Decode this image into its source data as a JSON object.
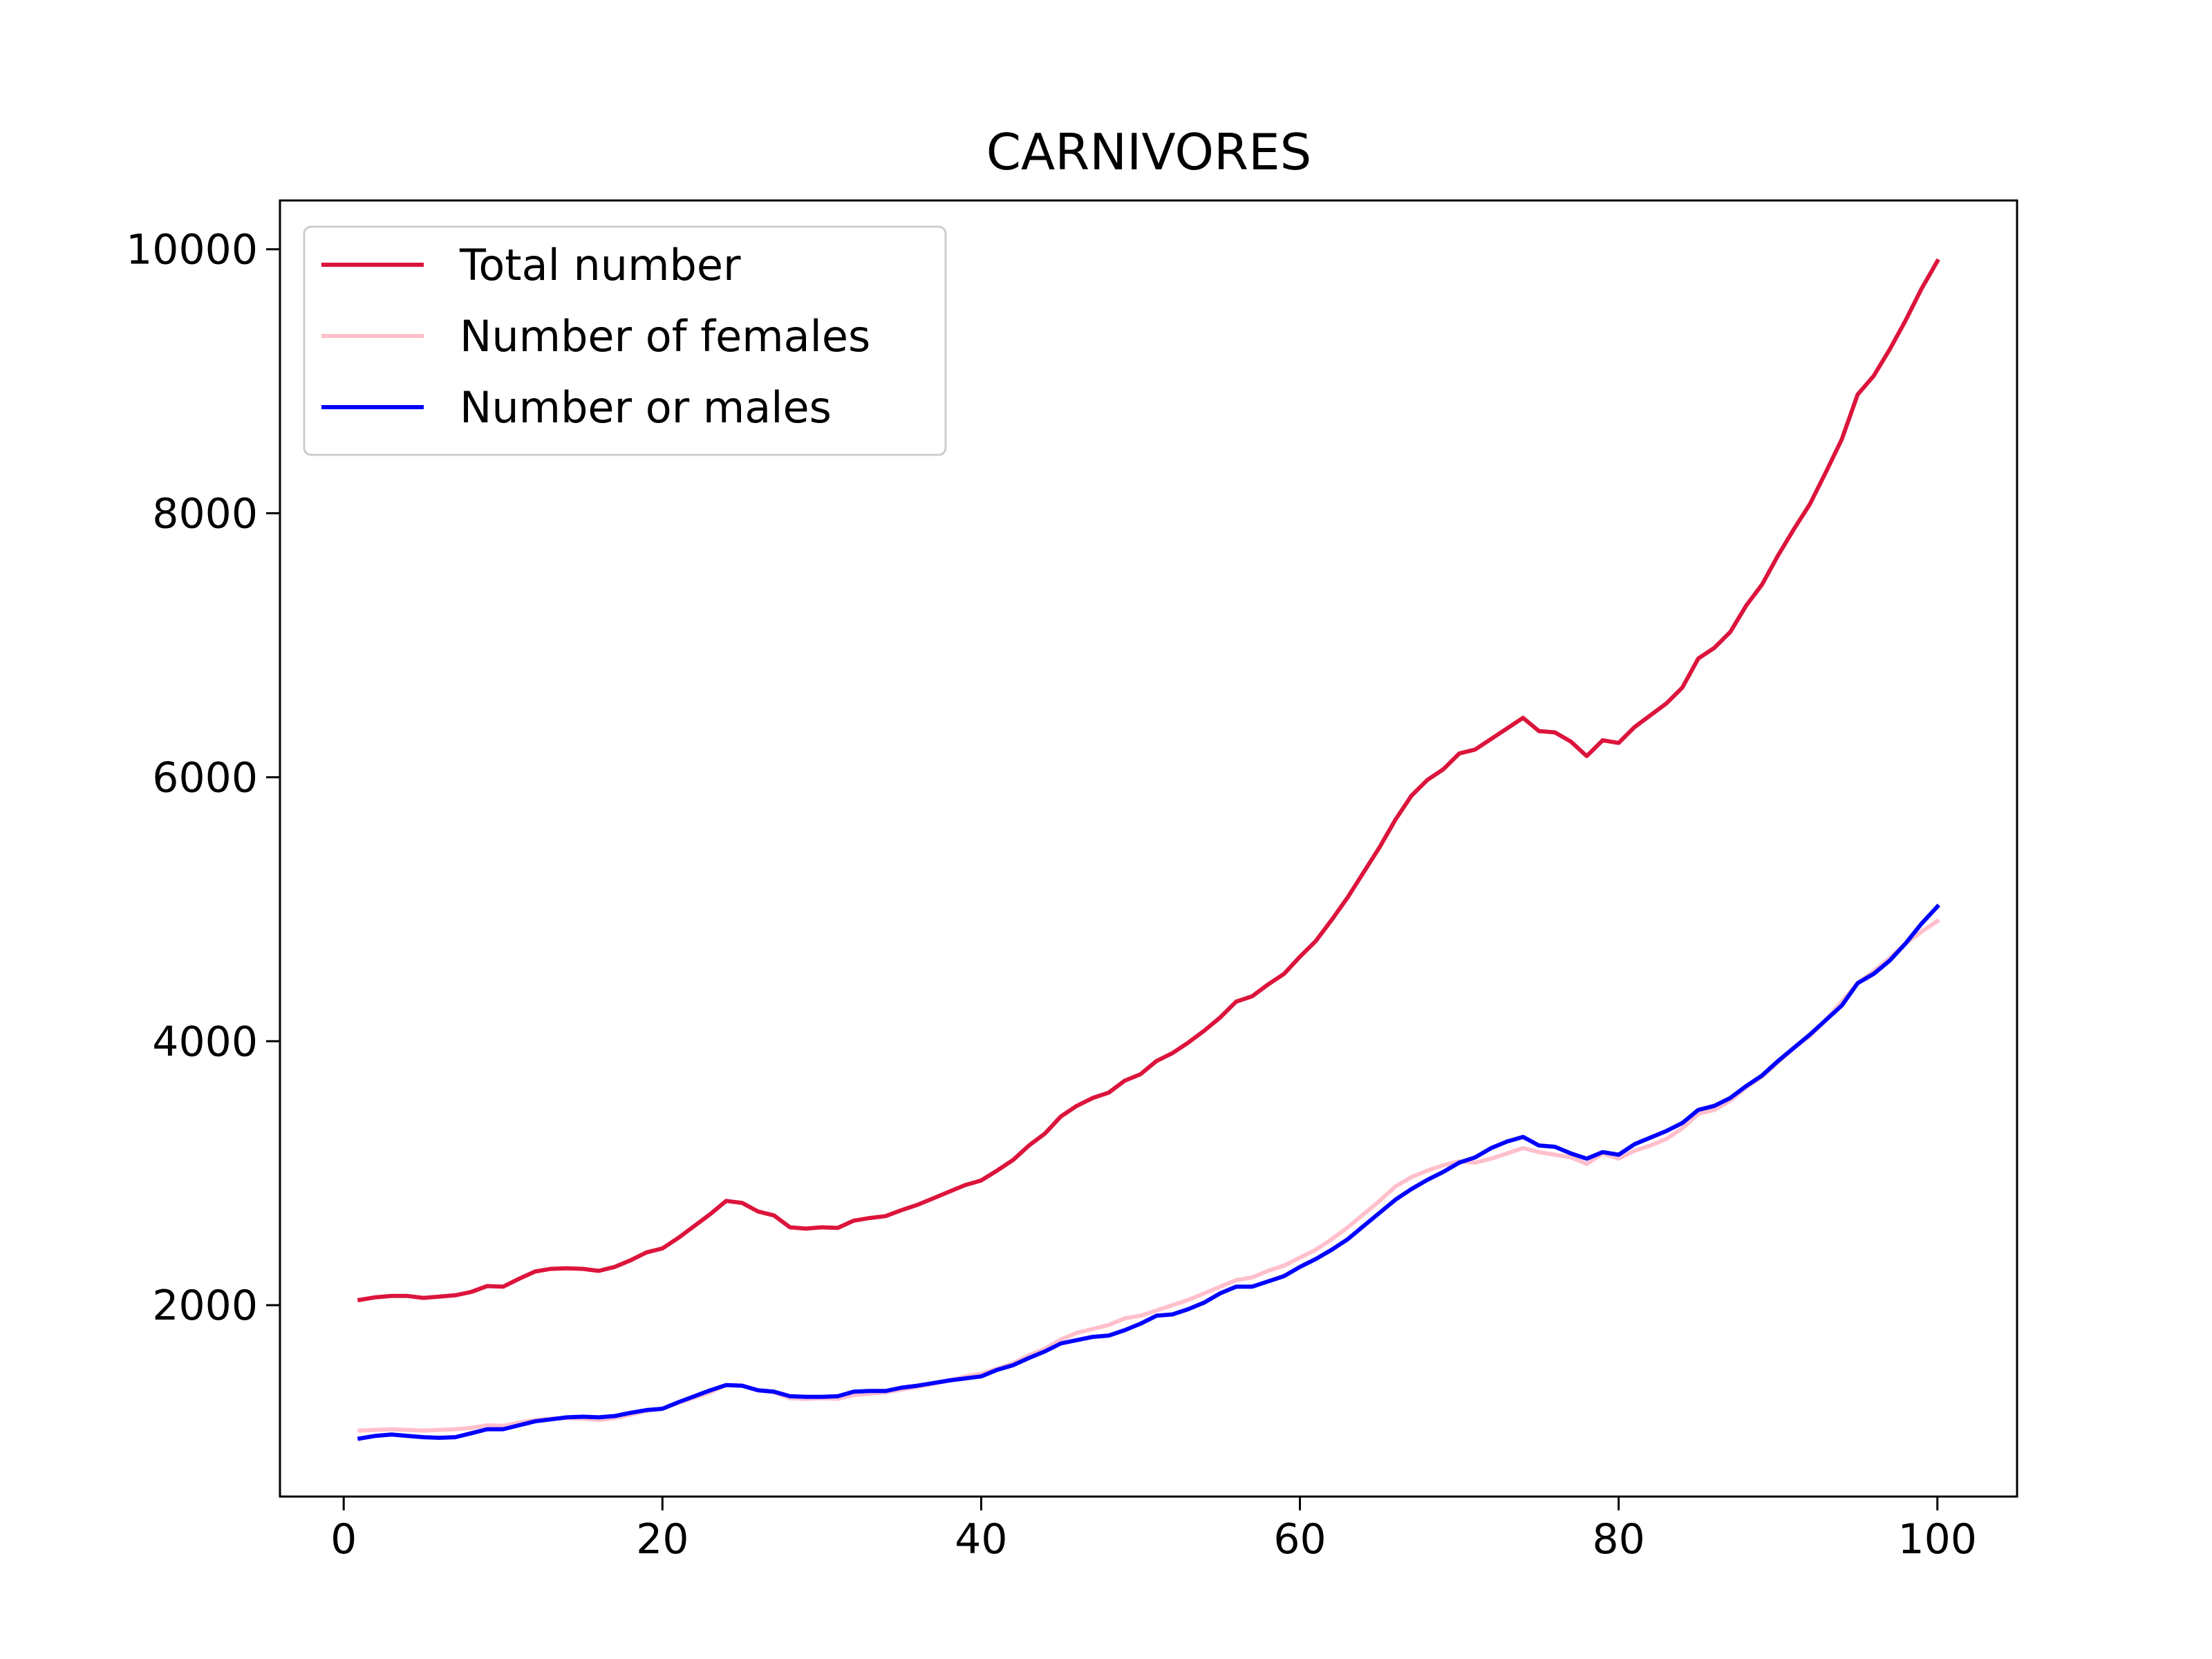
{
  "chart_data": {
    "type": "line",
    "title": "CARNIVORES",
    "xlabel": "",
    "ylabel": "",
    "xlim": [
      -4,
      105
    ],
    "ylim": [
      550,
      10370
    ],
    "xticks": [
      0,
      20,
      40,
      60,
      80,
      100
    ],
    "yticks": [
      2000,
      4000,
      6000,
      8000,
      10000
    ],
    "grid": false,
    "legend_position": "upper-left",
    "x": [
      1,
      2,
      3,
      4,
      5,
      6,
      7,
      8,
      9,
      10,
      11,
      12,
      13,
      14,
      15,
      16,
      17,
      18,
      19,
      20,
      21,
      22,
      23,
      24,
      25,
      26,
      27,
      28,
      29,
      30,
      31,
      32,
      33,
      34,
      35,
      36,
      37,
      38,
      39,
      40,
      41,
      42,
      43,
      44,
      45,
      46,
      47,
      48,
      49,
      50,
      51,
      52,
      53,
      54,
      55,
      56,
      57,
      58,
      59,
      60,
      61,
      62,
      63,
      64,
      65,
      66,
      67,
      68,
      69,
      70,
      71,
      72,
      73,
      74,
      75,
      76,
      77,
      78,
      79,
      80,
      81,
      82,
      83,
      84,
      85,
      86,
      87,
      88,
      89,
      90,
      91,
      92,
      93,
      94,
      95,
      96,
      97,
      98,
      99,
      100
    ],
    "series": [
      {
        "name": "Total number",
        "color": "#dc143c",
        "values": [
          2040,
          2060,
          2070,
          2070,
          2055,
          2065,
          2075,
          2100,
          2145,
          2140,
          2200,
          2255,
          2275,
          2280,
          2275,
          2260,
          2290,
          2340,
          2400,
          2430,
          2510,
          2600,
          2690,
          2790,
          2775,
          2710,
          2680,
          2590,
          2580,
          2590,
          2585,
          2640,
          2660,
          2675,
          2720,
          2760,
          2810,
          2860,
          2910,
          2945,
          3020,
          3100,
          3210,
          3300,
          3430,
          3510,
          3570,
          3610,
          3700,
          3750,
          3850,
          3910,
          3990,
          4080,
          4180,
          4300,
          4340,
          4430,
          4510,
          4640,
          4760,
          4920,
          5090,
          5280,
          5470,
          5680,
          5860,
          5980,
          6060,
          6180,
          6210,
          6290,
          6370,
          6450,
          6350,
          6340,
          6270,
          6160,
          6280,
          6260,
          6380,
          6470,
          6560,
          6680,
          6900,
          6980,
          7100,
          7300,
          7460,
          7680,
          7880,
          8070,
          8310,
          8560,
          8900,
          9040,
          9240,
          9460,
          9700,
          9910
        ]
      },
      {
        "name": "Number of females",
        "color": "#ffc0cb",
        "values": [
          1050,
          1055,
          1060,
          1055,
          1050,
          1055,
          1060,
          1070,
          1090,
          1085,
          1110,
          1130,
          1140,
          1145,
          1140,
          1130,
          1145,
          1170,
          1200,
          1215,
          1260,
          1300,
          1340,
          1395,
          1390,
          1355,
          1340,
          1295,
          1290,
          1295,
          1290,
          1320,
          1330,
          1340,
          1360,
          1380,
          1405,
          1430,
          1460,
          1480,
          1520,
          1560,
          1620,
          1670,
          1740,
          1790,
          1820,
          1850,
          1900,
          1920,
          1960,
          2000,
          2040,
          2090,
          2140,
          2190,
          2210,
          2260,
          2300,
          2360,
          2420,
          2500,
          2590,
          2690,
          2790,
          2900,
          2970,
          3020,
          3060,
          3090,
          3080,
          3110,
          3150,
          3190,
          3160,
          3140,
          3120,
          3070,
          3150,
          3110,
          3170,
          3210,
          3260,
          3340,
          3450,
          3480,
          3550,
          3650,
          3730,
          3840,
          3950,
          4040,
          4160,
          4300,
          4440,
          4530,
          4630,
          4740,
          4830,
          4910
        ]
      },
      {
        "name": "Number or males",
        "color": "#0000ff",
        "values": [
          990,
          1010,
          1020,
          1010,
          1000,
          995,
          1000,
          1030,
          1060,
          1060,
          1090,
          1120,
          1135,
          1150,
          1155,
          1150,
          1160,
          1185,
          1205,
          1215,
          1265,
          1310,
          1355,
          1395,
          1390,
          1355,
          1345,
          1310,
          1305,
          1305,
          1310,
          1345,
          1350,
          1350,
          1375,
          1390,
          1410,
          1430,
          1445,
          1460,
          1510,
          1545,
          1600,
          1650,
          1710,
          1735,
          1760,
          1770,
          1810,
          1860,
          1920,
          1930,
          1970,
          2020,
          2090,
          2140,
          2140,
          2180,
          2220,
          2290,
          2350,
          2420,
          2500,
          2600,
          2700,
          2800,
          2880,
          2950,
          3010,
          3080,
          3120,
          3190,
          3240,
          3275,
          3210,
          3200,
          3150,
          3110,
          3160,
          3140,
          3220,
          3270,
          3320,
          3380,
          3480,
          3510,
          3570,
          3660,
          3740,
          3850,
          3950,
          4050,
          4160,
          4270,
          4440,
          4510,
          4610,
          4740,
          4890,
          5020
        ]
      }
    ]
  }
}
